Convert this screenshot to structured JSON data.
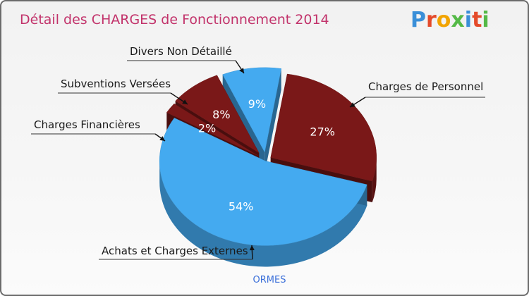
{
  "chart_data": {
    "type": "pie",
    "title": "Détail des CHARGES de Fonctionnement 2014",
    "subtitle": "ORMES",
    "logo_text": "Proxiti",
    "labels": [
      "Charges de Personnel",
      "Achats et Charges Externes",
      "Charges Financières",
      "Subventions Versées",
      "Divers Non Détaillé"
    ],
    "values": [
      27,
      54,
      2,
      8,
      9
    ],
    "value_labels": [
      "27%",
      "54%",
      "2%",
      "8%",
      "9%"
    ],
    "colors": [
      "#7a1818",
      "#44aaf0",
      "#7a1818",
      "#7a1818",
      "#44aaf0"
    ],
    "title_color": "#c2336b",
    "subtitle_color": "#3b6fd9",
    "legend": "none",
    "start_angle_deg": -81
  }
}
